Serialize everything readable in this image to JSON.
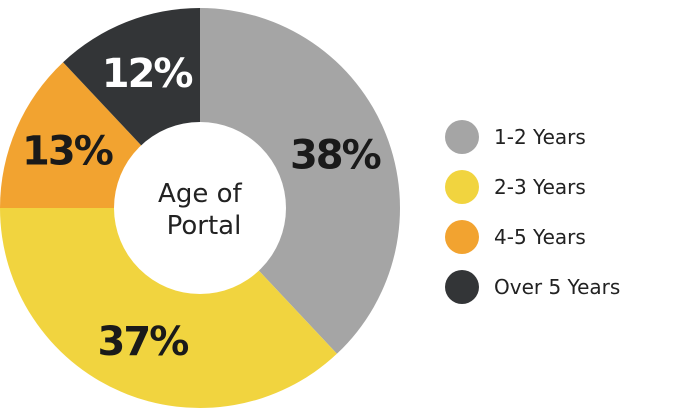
{
  "chart_data": {
    "type": "pie",
    "style": "donut",
    "center_label": [
      "Age of",
      "Portal"
    ],
    "legend_placement": "right",
    "slices": [
      {
        "name": "1-2 Years",
        "value": 38,
        "label": "38%",
        "color": "#a5a5a5",
        "label_color": "#1a1a1a"
      },
      {
        "name": "2-3 Years",
        "value": 37,
        "label": "37%",
        "color": "#f1d43f",
        "label_color": "#1a1a1a"
      },
      {
        "name": "4-5 Years",
        "value": 13,
        "label": "13%",
        "color": "#f2a330",
        "label_color": "#1a1a1a"
      },
      {
        "name": "Over 5 Years",
        "value": 12,
        "label": "12%",
        "color": "#333537",
        "label_color": "#ffffff"
      }
    ]
  }
}
